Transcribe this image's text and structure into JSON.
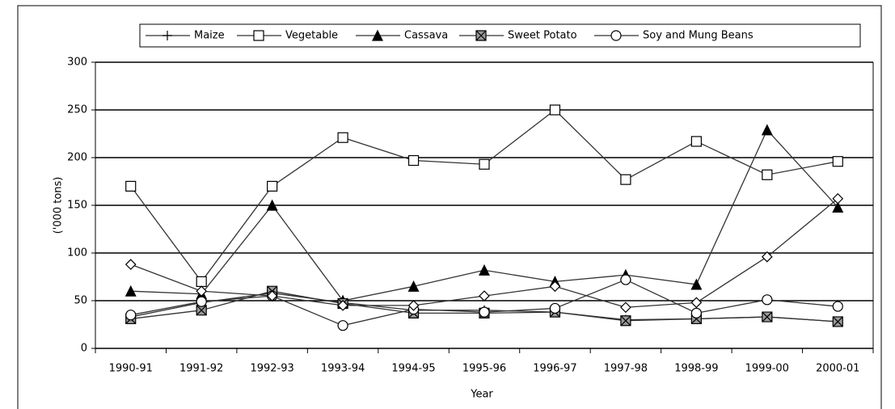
{
  "chart_data": {
    "type": "line",
    "x_label": "Year",
    "y_label": "('000 tons)",
    "categories": [
      "1990-91",
      "1991-92",
      "1992-93",
      "1993-94",
      "1994-95",
      "1995-96",
      "1996-97",
      "1997-98",
      "1998-99",
      "1999-00",
      "2000-01"
    ],
    "series": [
      {
        "name": "Maize",
        "marker": "plus",
        "color": "#333333",
        "values": [
          33,
          48,
          58,
          48,
          40,
          40,
          38,
          30,
          31,
          33,
          28
        ]
      },
      {
        "name": "Vegetable",
        "marker": "square",
        "color": "#333333",
        "values": [
          170,
          70,
          170,
          221,
          197,
          193,
          250,
          177,
          217,
          182,
          196
        ]
      },
      {
        "name": "Cassava",
        "marker": "triangle",
        "color": "#333333",
        "values": [
          60,
          57,
          150,
          50,
          65,
          82,
          70,
          77,
          67,
          229,
          148
        ]
      },
      {
        "name": "Sweet Potato",
        "marker": "xbox",
        "color": "#333333",
        "values": [
          31,
          40,
          60,
          47,
          37,
          37,
          38,
          29,
          31,
          33,
          28
        ]
      },
      {
        "name": "Soy and Mung Beans",
        "marker": "circle",
        "color": "#333333",
        "values": [
          35,
          49,
          55,
          24,
          41,
          38,
          42,
          72,
          37,
          51,
          44
        ]
      },
      {
        "marker": "diamond",
        "color": "#333333",
        "values": [
          88,
          60,
          55,
          45,
          45,
          55,
          65,
          43,
          48,
          96,
          157
        ]
      }
    ],
    "ylim": [
      0,
      300
    ],
    "yticks": [
      0,
      50,
      100,
      150,
      200,
      250,
      300
    ],
    "grid": true,
    "legend": "top"
  }
}
